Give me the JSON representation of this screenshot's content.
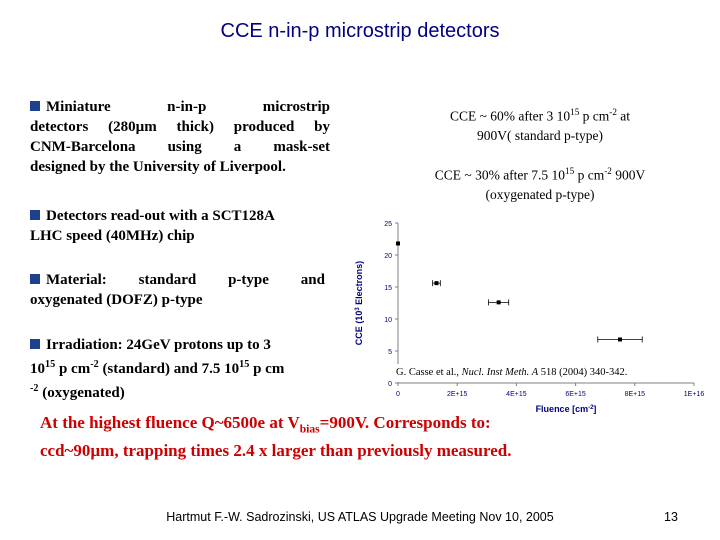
{
  "title": "CCE n-in-p microstrip detectors",
  "bullets": [
    {
      "lines": [
        "Miniature n-in-p microstrip",
        "detectors (280µm thick) produced by",
        "CNM-Barcelona using a mask-set",
        "designed by the University of Liverpool."
      ]
    },
    {
      "lines": [
        "Detectors read-out with a SCT128A",
        "LHC speed (40MHz) chip"
      ]
    },
    {
      "lines": [
        "Material: standard p-type and",
        "oxygenated (DOFZ) p-type"
      ]
    },
    {
      "line1_a": "Irradiation: 24GeV protons up to 3",
      "line2_a": "10",
      "line2_sup1": "15",
      "line2_b": " p cm",
      "line2_sup2": "-2",
      "line2_c": " (standard) and 7.5 10",
      "line2_sup3": "15",
      "line2_d": " p cm",
      "line3_sup": "-2",
      "line3_a": " (oxygenated)"
    }
  ],
  "annotations": [
    {
      "a": "CCE ~ 60% after 3 10",
      "sup1": "15",
      "b": " p cm",
      "sup2": "-2",
      "c": " at",
      "line2": "900V( standard p-type)"
    },
    {
      "a": "CCE ~ 30% after 7.5 10",
      "sup1": "15",
      "b": " p cm",
      "sup2": "-2",
      "c": " 900V",
      "line2": "(oxygenated p-type)"
    }
  ],
  "chart_data": {
    "type": "scatter",
    "xlabel": "Fluence [cm",
    "xlabel_sup": "-2",
    "xlabel_end": "]",
    "ylabel": "CCE (10",
    "ylabel_sup": "3",
    "ylabel_end": " Electrons)",
    "xlim": [
      0,
      1e+16
    ],
    "ylim": [
      0,
      25
    ],
    "x_ticks": [
      "0",
      "2E+15",
      "4E+15",
      "6E+15",
      "8E+15",
      "1E+16"
    ],
    "y_ticks": [
      "0",
      "5",
      "10",
      "15",
      "20",
      "25"
    ],
    "points": [
      {
        "x": 0,
        "y": 21.8,
        "xerr": 0
      },
      {
        "x": 1300000000000000.0,
        "y": 15.6,
        "xerr": 130000000000000.0
      },
      {
        "x": 3400000000000000.0,
        "y": 12.6,
        "xerr": 340000000000000.0
      },
      {
        "x": 7500000000000000.0,
        "y": 6.8,
        "xerr": 750000000000000.0
      }
    ],
    "colors": {
      "points": "#000000",
      "axis": "#808080",
      "labels": "#000080"
    }
  },
  "citation": {
    "a": "G. Casse et al., ",
    "journal": "Nucl. Inst Meth. A",
    "b": " 518 (2004) 340-342."
  },
  "highlight": {
    "line1_a": "At the highest fluence Q~6500e at V",
    "line1_sub": "bias",
    "line1_b": "=900V. Corresponds to:",
    "line2": "ccd~90µm, trapping times 2.4 x larger than previously measured."
  },
  "footer": "Hartmut F.-W. Sadrozinski, US ATLAS Upgrade Meeting Nov 10,  2005",
  "page_number": "13",
  "colors": {
    "title": "#000080",
    "highlight": "#cc0000",
    "bullet": "#1f3f8f"
  }
}
